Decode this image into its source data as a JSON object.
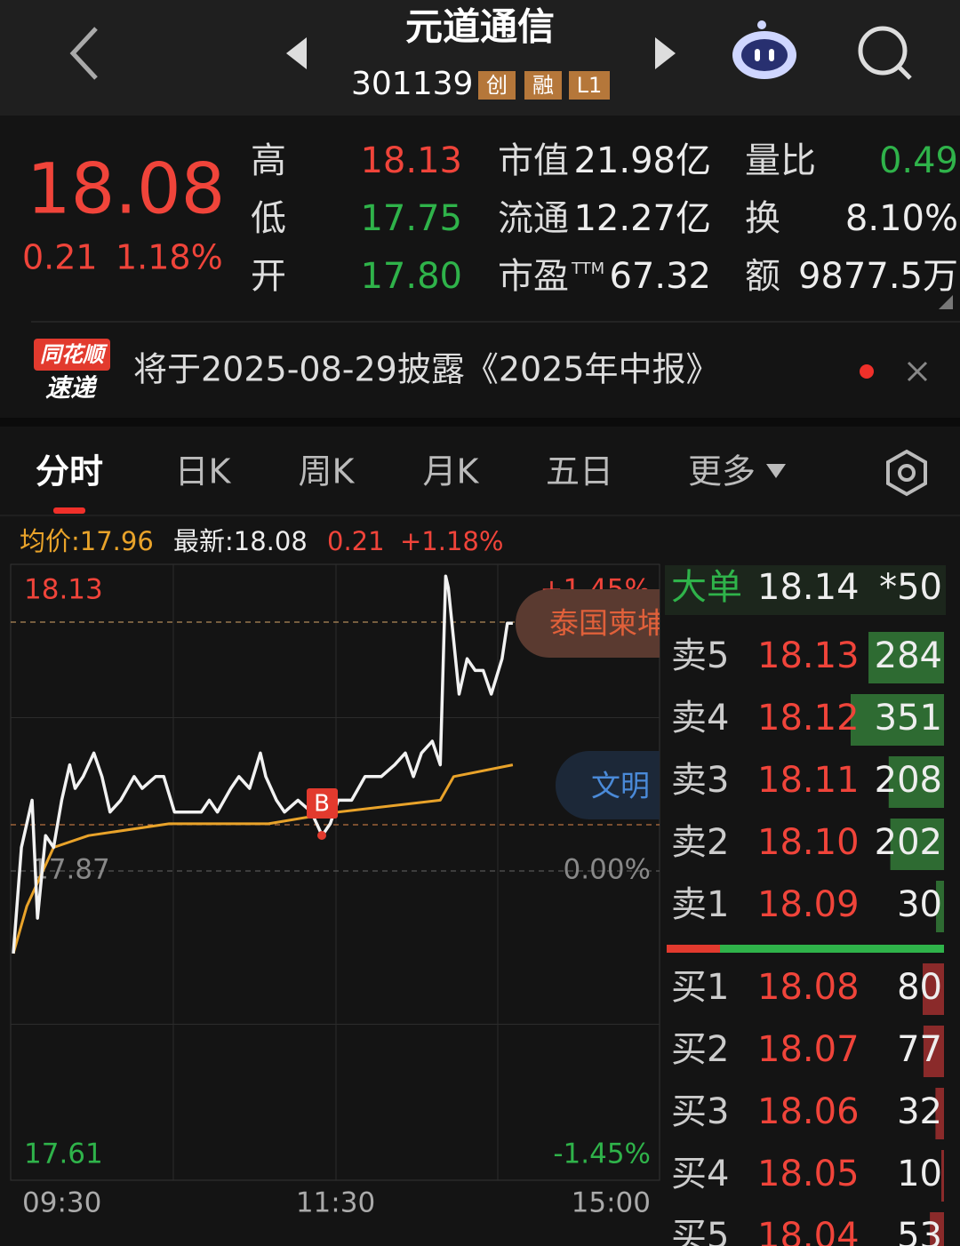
{
  "header": {
    "name": "元道通信",
    "code": "301139",
    "tags": [
      "创",
      "融",
      "L1"
    ]
  },
  "quote": {
    "price": "18.08",
    "change": "0.21",
    "change_pct": "1.18%",
    "hlo": [
      {
        "label": "高",
        "value": "18.13"
      },
      {
        "label": "低",
        "value": "17.75"
      },
      {
        "label": "开",
        "value": "17.80"
      }
    ],
    "mid": [
      {
        "label": "市值",
        "value": "21.98亿"
      },
      {
        "label": "流通",
        "value": "12.27亿"
      },
      {
        "label": "市盈",
        "sup": "TTM",
        "value": "67.32"
      }
    ],
    "right": [
      {
        "label": "量比",
        "value": "0.49"
      },
      {
        "label": "换",
        "value": "8.10%"
      },
      {
        "label": "额",
        "value": "9877.5万"
      }
    ]
  },
  "news": {
    "badge_top": "同花顺",
    "badge_bottom": "速递",
    "text": "将于2025-08-29披露《2025年中报》"
  },
  "tabs": [
    "分时",
    "日K",
    "周K",
    "月K",
    "五日",
    "更多"
  ],
  "info": {
    "avg": "均价:17.96",
    "latest": "最新:18.08",
    "change": "0.21",
    "pct": "+1.18%"
  },
  "intraday": {
    "ylim": [
      17.61,
      18.13
    ],
    "yticks": [
      17.61,
      17.87,
      18.13
    ],
    "pct_labels": [
      "-1.45%",
      "0.00%",
      "+1.45%"
    ],
    "xlim": [
      0,
      240
    ],
    "xticks": [
      {
        "value": 0,
        "label": "09:30"
      },
      {
        "value": 120,
        "label": "11:30"
      },
      {
        "value": 240,
        "label": "15:00"
      }
    ],
    "minutes": [
      0,
      3,
      7,
      9,
      12,
      15,
      18,
      21,
      23,
      26,
      30,
      33,
      36,
      40,
      45,
      48,
      53,
      56,
      60,
      65,
      70,
      73,
      76,
      81,
      84,
      88,
      92,
      94,
      98,
      101,
      106,
      111,
      115,
      118,
      121,
      126,
      131,
      134,
      137,
      142,
      146,
      149,
      152,
      156,
      159,
      161,
      162,
      166,
      169,
      172,
      175,
      178,
      182,
      184,
      186
    ],
    "prices": [
      17.8,
      17.89,
      17.93,
      17.83,
      17.9,
      17.89,
      17.93,
      17.96,
      17.94,
      17.95,
      17.97,
      17.95,
      17.92,
      17.93,
      17.95,
      17.94,
      17.95,
      17.95,
      17.92,
      17.92,
      17.92,
      17.93,
      17.92,
      17.94,
      17.95,
      17.94,
      17.97,
      17.95,
      17.93,
      17.92,
      17.93,
      17.92,
      17.9,
      17.91,
      17.93,
      17.93,
      17.95,
      17.95,
      17.95,
      17.96,
      17.97,
      17.95,
      17.97,
      17.98,
      17.96,
      18.12,
      18.11,
      18.02,
      18.05,
      18.04,
      18.04,
      18.02,
      18.05,
      18.08,
      18.08
    ],
    "avg_minutes": [
      0,
      5,
      15,
      28,
      58,
      95,
      121,
      159,
      164,
      186
    ],
    "avg": [
      17.8,
      17.84,
      17.89,
      17.9,
      17.91,
      17.91,
      17.92,
      17.93,
      17.95,
      17.96
    ],
    "marker": "B",
    "tags": [
      "泰国柬埔",
      "文明"
    ]
  },
  "orderbook": {
    "big": {
      "label": "大单",
      "price": "18.14",
      "volume": "*50"
    },
    "asks": [
      {
        "label": "卖5",
        "price": "18.13",
        "volume": 284
      },
      {
        "label": "卖4",
        "price": "18.12",
        "volume": 351
      },
      {
        "label": "卖3",
        "price": "18.11",
        "volume": 208
      },
      {
        "label": "卖2",
        "price": "18.10",
        "volume": 202
      },
      {
        "label": "卖1",
        "price": "18.09",
        "volume": 30
      }
    ],
    "bids": [
      {
        "label": "买1",
        "price": "18.08",
        "volume": 80
      },
      {
        "label": "买2",
        "price": "18.07",
        "volume": 77
      },
      {
        "label": "买3",
        "price": "18.06",
        "volume": 32
      },
      {
        "label": "买4",
        "price": "18.05",
        "volume": 10
      },
      {
        "label": "买5",
        "price": "18.04",
        "volume": 53
      }
    ]
  }
}
